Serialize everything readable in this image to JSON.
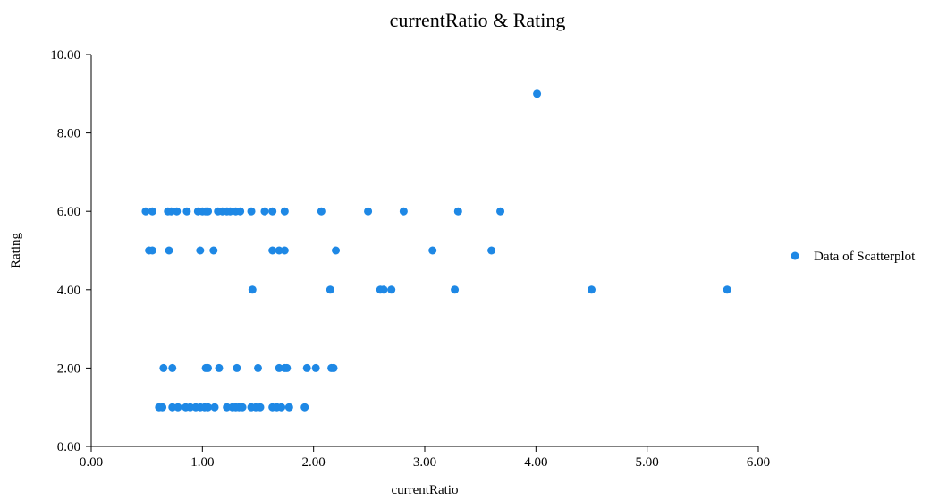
{
  "chart_data": {
    "type": "scatter",
    "title": "currentRatio & Rating",
    "xlabel": "currentRatio",
    "ylabel": "Rating",
    "xlim": [
      0,
      6
    ],
    "ylim": [
      0,
      10
    ],
    "xticks": [
      "0.00",
      "1.00",
      "2.00",
      "3.00",
      "4.00",
      "5.00",
      "6.00"
    ],
    "yticks": [
      "0.00",
      "2.00",
      "4.00",
      "6.00",
      "8.00",
      "10.00"
    ],
    "grid": false,
    "legend_position": "right",
    "series": [
      {
        "name": "Data of Scatterplot",
        "color": "#1e88e5",
        "points": [
          [
            0.49,
            6
          ],
          [
            0.55,
            6
          ],
          [
            0.69,
            6
          ],
          [
            0.72,
            6
          ],
          [
            0.77,
            6
          ],
          [
            0.86,
            6
          ],
          [
            0.96,
            6
          ],
          [
            1.0,
            6
          ],
          [
            1.03,
            6
          ],
          [
            1.05,
            6
          ],
          [
            1.14,
            6
          ],
          [
            1.18,
            6
          ],
          [
            1.22,
            6
          ],
          [
            1.25,
            6
          ],
          [
            1.3,
            6
          ],
          [
            1.34,
            6
          ],
          [
            1.44,
            6
          ],
          [
            1.56,
            6
          ],
          [
            1.63,
            6
          ],
          [
            1.74,
            6
          ],
          [
            2.07,
            6
          ],
          [
            2.49,
            6
          ],
          [
            2.81,
            6
          ],
          [
            3.3,
            6
          ],
          [
            3.68,
            6
          ],
          [
            0.52,
            5
          ],
          [
            0.55,
            5
          ],
          [
            0.7,
            5
          ],
          [
            0.98,
            5
          ],
          [
            1.1,
            5
          ],
          [
            1.63,
            5
          ],
          [
            1.69,
            5
          ],
          [
            1.74,
            5
          ],
          [
            2.2,
            5
          ],
          [
            3.07,
            5
          ],
          [
            3.6,
            5
          ],
          [
            1.45,
            4
          ],
          [
            2.15,
            4
          ],
          [
            2.6,
            4
          ],
          [
            2.63,
            4
          ],
          [
            2.7,
            4
          ],
          [
            3.27,
            4
          ],
          [
            4.5,
            4
          ],
          [
            5.72,
            4
          ],
          [
            4.01,
            9
          ],
          [
            0.65,
            2
          ],
          [
            0.73,
            2
          ],
          [
            1.03,
            2
          ],
          [
            1.05,
            2
          ],
          [
            1.15,
            2
          ],
          [
            1.31,
            2
          ],
          [
            1.5,
            2
          ],
          [
            1.69,
            2
          ],
          [
            1.74,
            2
          ],
          [
            1.76,
            2
          ],
          [
            1.94,
            2
          ],
          [
            2.02,
            2
          ],
          [
            2.16,
            2
          ],
          [
            2.18,
            2
          ],
          [
            0.61,
            1
          ],
          [
            0.64,
            1
          ],
          [
            0.73,
            1
          ],
          [
            0.78,
            1
          ],
          [
            0.85,
            1
          ],
          [
            0.89,
            1
          ],
          [
            0.94,
            1
          ],
          [
            0.98,
            1
          ],
          [
            1.02,
            1
          ],
          [
            1.05,
            1
          ],
          [
            1.11,
            1
          ],
          [
            1.22,
            1
          ],
          [
            1.27,
            1
          ],
          [
            1.3,
            1
          ],
          [
            1.33,
            1
          ],
          [
            1.36,
            1
          ],
          [
            1.44,
            1
          ],
          [
            1.48,
            1
          ],
          [
            1.52,
            1
          ],
          [
            1.63,
            1
          ],
          [
            1.67,
            1
          ],
          [
            1.71,
            1
          ],
          [
            1.78,
            1
          ],
          [
            1.92,
            1
          ]
        ]
      }
    ]
  }
}
